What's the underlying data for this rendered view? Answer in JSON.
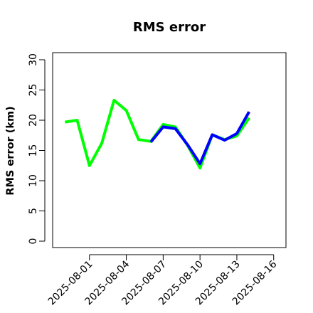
{
  "chart_data": {
    "type": "line",
    "title": "RMS error",
    "xlabel": "",
    "ylabel": "RMS error (km)",
    "ylim": [
      0,
      31
    ],
    "yticks": [
      0,
      5,
      10,
      15,
      20,
      25,
      30
    ],
    "xlim": [
      "2025-07-29",
      "2025-08-17"
    ],
    "xticks": [
      "2025-08-01",
      "2025-08-04",
      "2025-08-07",
      "2025-08-10",
      "2025-08-13",
      "2025-08-16"
    ],
    "xtick_colors": [
      "#000000",
      "#000000",
      "#228B22",
      "#000000",
      "#000000",
      "#000000"
    ],
    "grid": false,
    "legend": false,
    "series": [
      {
        "color": "#00ff00",
        "x": [
          "2025-07-30",
          "2025-07-31",
          "2025-08-01",
          "2025-08-02",
          "2025-08-03",
          "2025-08-04",
          "2025-08-05",
          "2025-08-06",
          "2025-08-07",
          "2025-08-08",
          "2025-08-09",
          "2025-08-10",
          "2025-08-11",
          "2025-08-12",
          "2025-08-13",
          "2025-08-14",
          "2025-08-15"
        ],
        "values": [
          19.7,
          20.0,
          12.5,
          16.2,
          23.3,
          21.6,
          16.8,
          16.5,
          19.3,
          18.9,
          15.8,
          12.1,
          17.6,
          16.8,
          17.4,
          20.4,
          null
        ]
      },
      {
        "color": "#0000ff",
        "x": [
          "2025-08-06",
          "2025-08-07",
          "2025-08-08",
          "2025-08-09",
          "2025-08-10",
          "2025-08-11",
          "2025-08-12",
          "2025-08-13",
          "2025-08-14"
        ],
        "values": [
          16.4,
          18.9,
          18.6,
          15.9,
          12.8,
          17.6,
          16.7,
          17.8,
          21.4
        ]
      }
    ]
  }
}
